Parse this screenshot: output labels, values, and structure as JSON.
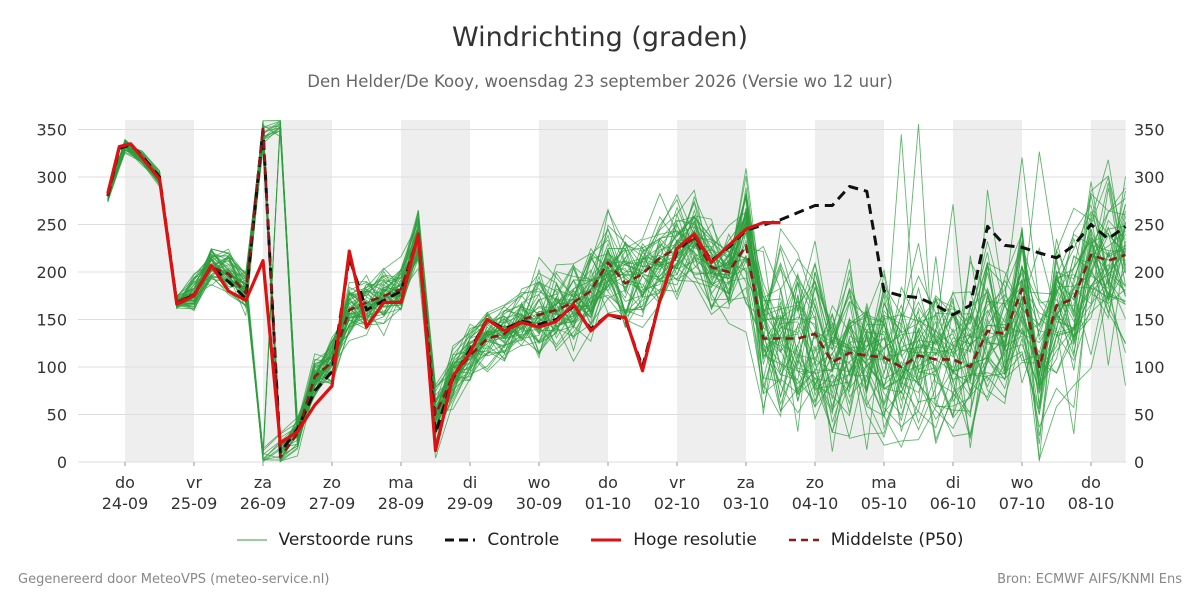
{
  "header": {
    "title": "Windrichting (graden)",
    "subtitle": "Den Helder/De Kooy, woensdag 23 september 2026 (Versie wo 12 uur)"
  },
  "footer": {
    "left": "Gegenereerd door MeteoVPS (meteo-service.nl)",
    "right": "Bron: ECMWF AIFS/KNMI Ens"
  },
  "colors": {
    "ensemble": "#2e9e3e",
    "control": "#111111",
    "hires": "#dd1111",
    "median": "#8b1a1a",
    "weekend_band": "#eeeeee",
    "grid": "#dddddd"
  },
  "legend": [
    {
      "label": "Verstoorde runs",
      "style": "ensemble"
    },
    {
      "label": "Controle",
      "style": "control"
    },
    {
      "label": "Hoge resolutie",
      "style": "hires"
    },
    {
      "label": "Middelste (P50)",
      "style": "median"
    }
  ],
  "chart_data": {
    "type": "line",
    "title": "Windrichting (graden)",
    "ylim": [
      0,
      360
    ],
    "yticks": [
      0,
      50,
      100,
      150,
      200,
      250,
      300,
      350
    ],
    "grid": true,
    "legend_position": "bottom",
    "x_unit": "days from 24-09 00:00",
    "xlim": [
      -0.6,
      14.5
    ],
    "x_ticks": [
      {
        "day": "do",
        "date": "24-09"
      },
      {
        "day": "vr",
        "date": "25-09"
      },
      {
        "day": "za",
        "date": "26-09"
      },
      {
        "day": "zo",
        "date": "27-09"
      },
      {
        "day": "ma",
        "date": "28-09"
      },
      {
        "day": "di",
        "date": "29-09"
      },
      {
        "day": "wo",
        "date": "30-09"
      },
      {
        "day": "do",
        "date": "01-10"
      },
      {
        "day": "vr",
        "date": "02-10"
      },
      {
        "day": "za",
        "date": "03-10"
      },
      {
        "day": "zo",
        "date": "04-10"
      },
      {
        "day": "ma",
        "date": "05-10"
      },
      {
        "day": "di",
        "date": "06-10"
      },
      {
        "day": "wo",
        "date": "07-10"
      },
      {
        "day": "do",
        "date": "08-10"
      }
    ],
    "shaded_bands": [
      [
        0,
        1
      ],
      [
        2,
        3
      ],
      [
        4,
        5
      ],
      [
        6,
        7
      ],
      [
        8,
        9
      ],
      [
        10,
        11
      ],
      [
        12,
        13
      ],
      [
        14,
        14.5
      ]
    ],
    "series": [
      {
        "name": "Hoge resolutie",
        "x": [
          -0.25,
          -0.0833,
          0.0833,
          0.25,
          0.5,
          0.75,
          1.0,
          1.25,
          1.5,
          1.75,
          2.0,
          2.25,
          2.5,
          2.75,
          3.0,
          3.25,
          3.5,
          3.75,
          4.0,
          4.25,
          4.5,
          4.75,
          5.0,
          5.25,
          5.5,
          5.75,
          6.0,
          6.25,
          6.5,
          6.75,
          7.0,
          7.25,
          7.5,
          7.75,
          8.0,
          8.25,
          8.5,
          8.75,
          9.0,
          9.25,
          9.5
        ],
        "y": [
          283,
          332,
          335,
          320,
          298,
          166,
          175,
          207,
          180,
          170,
          212,
          20,
          32,
          60,
          80,
          222,
          142,
          168,
          168,
          240,
          12,
          90,
          115,
          150,
          138,
          147,
          142,
          148,
          166,
          138,
          155,
          152,
          96,
          170,
          225,
          240,
          210,
          228,
          245,
          252,
          252
        ]
      },
      {
        "name": "Controle",
        "x": [
          -0.25,
          -0.0833,
          0.0833,
          0.25,
          0.5,
          0.75,
          1.0,
          1.25,
          1.5,
          1.75,
          2.0,
          2.25,
          2.5,
          2.75,
          3.0,
          3.25,
          3.5,
          3.75,
          4.0,
          4.25,
          4.5,
          4.75,
          5.0,
          5.25,
          5.5,
          5.75,
          6.0,
          6.25,
          6.5,
          6.75,
          7.0,
          7.25,
          7.5,
          7.75,
          8.0,
          8.25,
          8.5,
          8.75,
          9.0,
          9.5,
          10.0,
          10.25,
          10.5,
          10.75,
          11.0,
          11.25,
          11.5,
          11.75,
          12.0,
          12.25,
          12.5,
          12.75,
          13.0,
          13.25,
          13.5,
          13.75,
          14.0,
          14.25,
          14.5
        ],
        "y": [
          280,
          330,
          334,
          322,
          300,
          167,
          176,
          206,
          190,
          172,
          350,
          10,
          35,
          75,
          95,
          215,
          160,
          170,
          180,
          238,
          30,
          88,
          118,
          150,
          140,
          148,
          145,
          150,
          164,
          140,
          155,
          150,
          100,
          170,
          222,
          238,
          212,
          226,
          244,
          255,
          270,
          270,
          290,
          285,
          180,
          175,
          173,
          165,
          155,
          165,
          248,
          228,
          226,
          220,
          215,
          228,
          250,
          235,
          248
        ]
      },
      {
        "name": "Middelste (P50)",
        "x": [
          -0.25,
          -0.0833,
          0.0833,
          0.25,
          0.5,
          0.75,
          1.0,
          1.25,
          1.5,
          1.75,
          2.0,
          2.25,
          2.5,
          2.75,
          3.0,
          3.25,
          3.5,
          3.75,
          4.0,
          4.25,
          4.5,
          4.75,
          5.0,
          5.25,
          5.5,
          5.75,
          6.0,
          6.25,
          6.5,
          6.75,
          7.0,
          7.25,
          7.5,
          7.75,
          8.0,
          8.25,
          8.5,
          8.75,
          9.0,
          9.25,
          9.5,
          9.75,
          10.0,
          10.25,
          10.5,
          10.75,
          11.0,
          11.25,
          11.5,
          11.75,
          12.0,
          12.25,
          12.5,
          12.75,
          13.0,
          13.25,
          13.5,
          13.75,
          14.0,
          14.25,
          14.5
        ],
        "y": [
          280,
          330,
          336,
          320,
          298,
          168,
          177,
          205,
          198,
          178,
          352,
          5,
          30,
          90,
          105,
          160,
          168,
          175,
          182,
          238,
          50,
          90,
          112,
          130,
          135,
          150,
          155,
          160,
          168,
          180,
          210,
          188,
          198,
          215,
          225,
          235,
          205,
          200,
          228,
          130,
          130,
          130,
          135,
          105,
          115,
          112,
          110,
          100,
          112,
          108,
          108,
          100,
          138,
          135,
          182,
          100,
          165,
          172,
          218,
          212,
          218
        ]
      }
    ]
  }
}
